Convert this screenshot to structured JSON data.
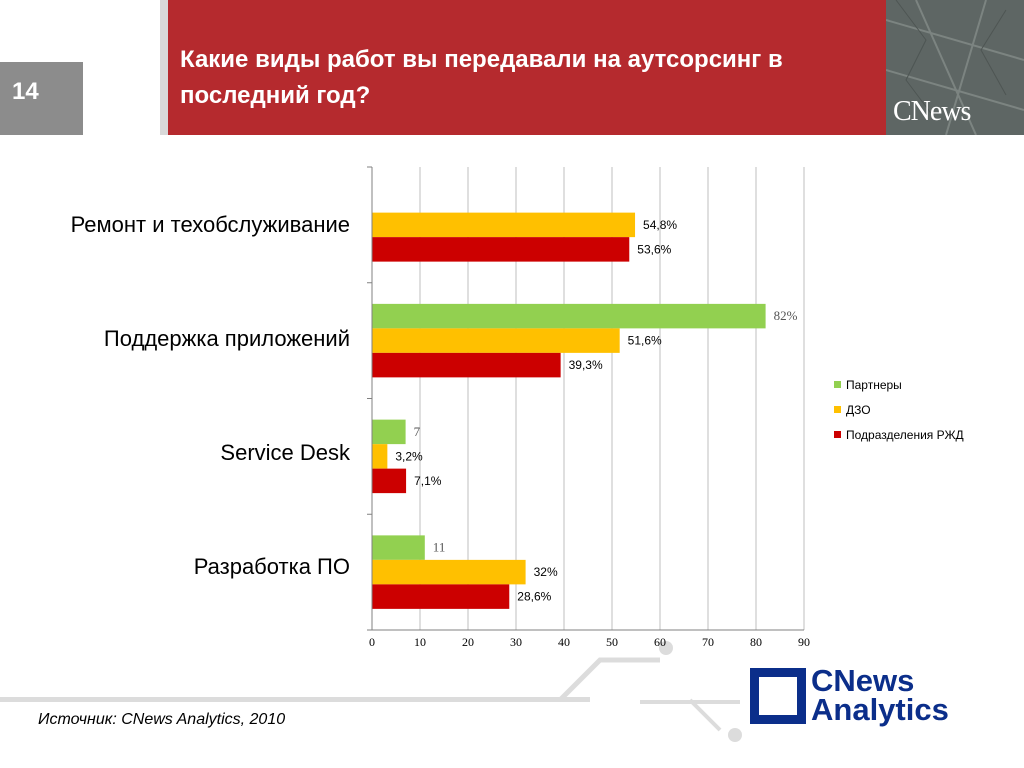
{
  "slide": {
    "number": "14",
    "title": "Какие виды работ вы передавали на аутсорсинг в последний год?",
    "brand_small": "CNews",
    "source": "Источник: CNews Analytics, 2010",
    "logo_line1": "CNews",
    "logo_line2": "Analytics"
  },
  "colors": {
    "title_bar": "#b52a2e",
    "partners": "#92d050",
    "dzo": "#ffc000",
    "rzd": "#cc0000",
    "logo": "#0b2e8a"
  },
  "chart_data": {
    "type": "bar",
    "orientation": "horizontal",
    "categories": [
      "Ремонт и техобслуживание",
      "Поддержка приложений",
      "Service Desk",
      "Разработка ПО"
    ],
    "series": [
      {
        "name": "Партнеры",
        "values": [
          null,
          82,
          7,
          11
        ],
        "labels": [
          "",
          "82%",
          "7",
          "11"
        ]
      },
      {
        "name": "ДЗО",
        "values": [
          54.8,
          51.6,
          3.2,
          32
        ],
        "labels": [
          "54,8%",
          "51,6%",
          "3,2%",
          "32%"
        ]
      },
      {
        "name": "Подразделения РЖД",
        "values": [
          53.6,
          39.3,
          7.1,
          28.6
        ],
        "labels": [
          "53,6%",
          "39,3%",
          "7,1%",
          "28,6%"
        ]
      }
    ],
    "xlim": [
      0,
      90
    ],
    "xticks": [
      "0",
      "10",
      "20",
      "30",
      "40",
      "50",
      "60",
      "70",
      "80",
      "90"
    ],
    "grid": true,
    "legend_position": "right"
  }
}
